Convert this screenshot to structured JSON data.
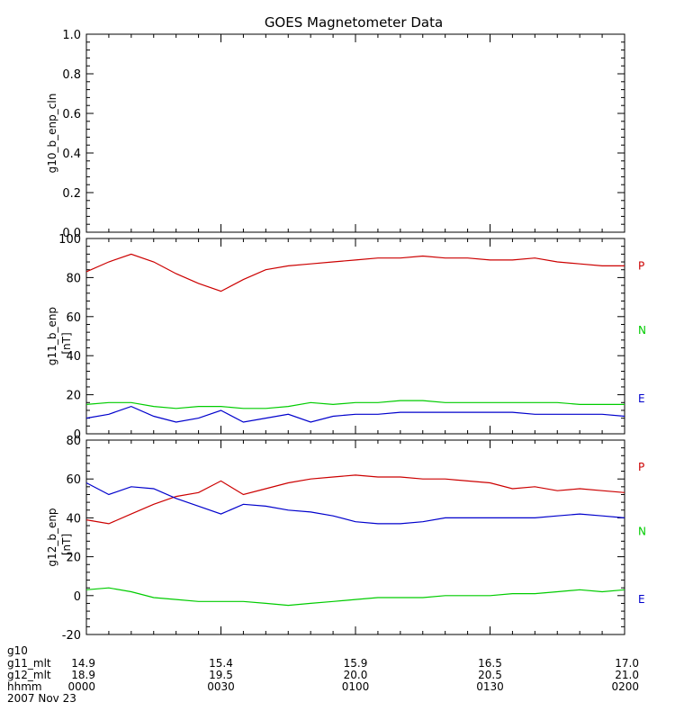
{
  "chart_data": {
    "type": "line",
    "title": "GOES Magnetometer Data",
    "date": "2007 Nov 23",
    "time_axis": {
      "row_labels": [
        "g10",
        "g11_mlt",
        "g12_mlt",
        "hhmm"
      ],
      "ticks": [
        {
          "hhmm": "0000",
          "g11_mlt": "14.9",
          "g12_mlt": "18.9"
        },
        {
          "hhmm": "0030",
          "g11_mlt": "15.4",
          "g12_mlt": "19.5"
        },
        {
          "hhmm": "0100",
          "g11_mlt": "15.9",
          "g12_mlt": "20.0"
        },
        {
          "hhmm": "0130",
          "g11_mlt": "16.5",
          "g12_mlt": "20.5"
        },
        {
          "hhmm": "0200",
          "g11_mlt": "17.0",
          "g12_mlt": "21.0"
        }
      ],
      "range_minutes": [
        0,
        120
      ]
    },
    "panels": [
      {
        "id": "g10",
        "ylabel": "g10_b_enp_cln",
        "unit": "",
        "ylim": [
          0,
          1
        ],
        "yticks": [
          "0.0",
          "0.2",
          "0.4",
          "0.6",
          "0.8",
          "1.0"
        ],
        "series": []
      },
      {
        "id": "g11",
        "ylabel": "g11_b_enp",
        "unit": "[nT]",
        "ylim": [
          0,
          100
        ],
        "yticks": [
          "0",
          "20",
          "40",
          "60",
          "80",
          "100"
        ],
        "component_labels": [
          {
            "text": "P",
            "color": "#cc0000"
          },
          {
            "text": "N",
            "color": "#00cc00"
          },
          {
            "text": "E",
            "color": "#0000cc"
          }
        ],
        "series": [
          {
            "color": "#cc0000",
            "x": [
              0,
              5,
              10,
              15,
              20,
              25,
              30,
              35,
              40,
              45,
              50,
              55,
              60,
              65,
              70,
              75,
              80,
              85,
              90,
              95,
              100,
              105,
              110,
              115,
              120
            ],
            "y": [
              83,
              88,
              92,
              88,
              82,
              77,
              73,
              79,
              84,
              86,
              87,
              88,
              89,
              90,
              90,
              91,
              90,
              90,
              89,
              89,
              90,
              88,
              87,
              86,
              86
            ]
          },
          {
            "color": "#00cc00",
            "x": [
              0,
              5,
              10,
              15,
              20,
              25,
              30,
              35,
              40,
              45,
              50,
              55,
              60,
              65,
              70,
              75,
              80,
              85,
              90,
              95,
              100,
              105,
              110,
              115,
              120
            ],
            "y": [
              15,
              16,
              16,
              14,
              13,
              14,
              14,
              13,
              13,
              14,
              16,
              15,
              16,
              16,
              17,
              17,
              16,
              16,
              16,
              16,
              16,
              16,
              15,
              15,
              15
            ]
          },
          {
            "color": "#0000cc",
            "x": [
              0,
              5,
              10,
              15,
              20,
              25,
              30,
              35,
              40,
              45,
              50,
              55,
              60,
              65,
              70,
              75,
              80,
              85,
              90,
              95,
              100,
              105,
              110,
              115,
              120
            ],
            "y": [
              8,
              10,
              14,
              9,
              6,
              8,
              12,
              6,
              8,
              10,
              6,
              9,
              10,
              10,
              11,
              11,
              11,
              11,
              11,
              11,
              10,
              10,
              10,
              10,
              9
            ]
          }
        ]
      },
      {
        "id": "g12",
        "ylabel": "g12_b_enp",
        "unit": "[nT]",
        "ylim": [
          -20,
          80
        ],
        "yticks": [
          "-20",
          "0",
          "20",
          "40",
          "60",
          "80"
        ],
        "component_labels": [
          {
            "text": "P",
            "color": "#cc0000"
          },
          {
            "text": "N",
            "color": "#00cc00"
          },
          {
            "text": "E",
            "color": "#0000cc"
          }
        ],
        "series": [
          {
            "color": "#cc0000",
            "x": [
              0,
              5,
              10,
              15,
              20,
              25,
              30,
              35,
              40,
              45,
              50,
              55,
              60,
              65,
              70,
              75,
              80,
              85,
              90,
              95,
              100,
              105,
              110,
              115,
              120
            ],
            "y": [
              39,
              37,
              42,
              47,
              51,
              53,
              59,
              52,
              55,
              58,
              60,
              61,
              62,
              61,
              61,
              60,
              60,
              59,
              58,
              55,
              56,
              54,
              55,
              54,
              53
            ]
          },
          {
            "color": "#0000cc",
            "x": [
              0,
              5,
              10,
              15,
              20,
              25,
              30,
              35,
              40,
              45,
              50,
              55,
              60,
              65,
              70,
              75,
              80,
              85,
              90,
              95,
              100,
              105,
              110,
              115,
              120
            ],
            "y": [
              58,
              52,
              56,
              55,
              50,
              46,
              42,
              47,
              46,
              44,
              43,
              41,
              38,
              37,
              37,
              38,
              40,
              40,
              40,
              40,
              40,
              41,
              42,
              41,
              40
            ]
          },
          {
            "color": "#00cc00",
            "x": [
              0,
              5,
              10,
              15,
              20,
              25,
              30,
              35,
              40,
              45,
              50,
              55,
              60,
              65,
              70,
              75,
              80,
              85,
              90,
              95,
              100,
              105,
              110,
              115,
              120
            ],
            "y": [
              3,
              4,
              2,
              -1,
              -2,
              -3,
              -3,
              -3,
              -4,
              -5,
              -4,
              -3,
              -2,
              -1,
              -1,
              -1,
              0,
              0,
              0,
              1,
              1,
              2,
              3,
              2,
              3
            ]
          }
        ]
      }
    ]
  }
}
